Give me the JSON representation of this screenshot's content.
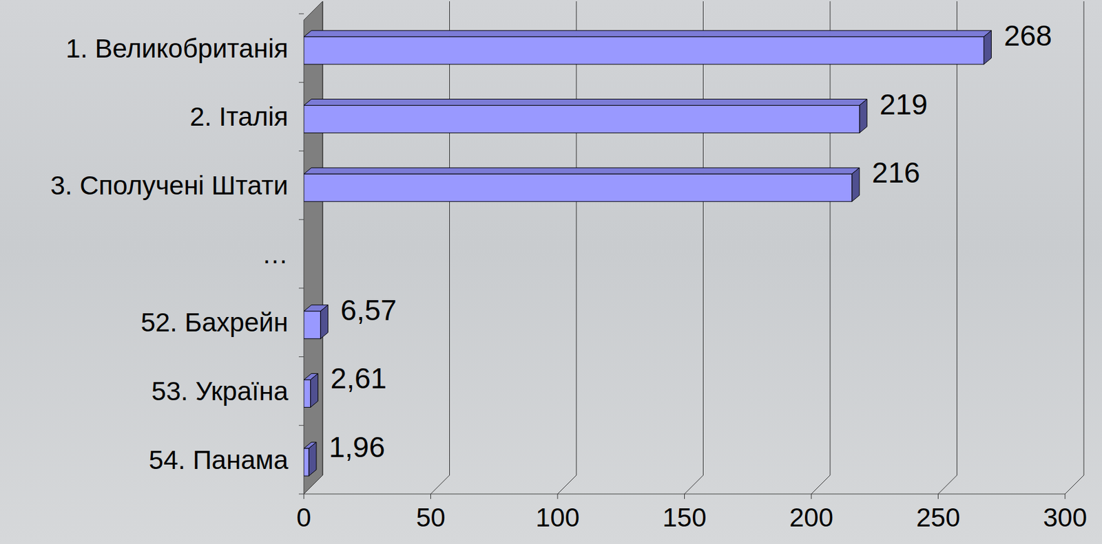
{
  "chart_data": {
    "type": "bar",
    "orientation": "horizontal",
    "categories": [
      "1. Великобританія",
      "2. Італія",
      "3. Сполучені Штати",
      "…",
      "52. Бахрейн",
      "53. Україна",
      "54. Панама"
    ],
    "values": [
      268,
      219,
      216,
      null,
      6.57,
      2.61,
      1.96
    ],
    "value_labels": [
      "268",
      "219",
      "216",
      null,
      "6,57",
      "2,61",
      "1,96"
    ],
    "color": "#9999ff",
    "xlim": [
      0,
      300
    ],
    "xticks": [
      0,
      50,
      100,
      150,
      200,
      250,
      300
    ],
    "grid": true,
    "data_labels": true
  }
}
